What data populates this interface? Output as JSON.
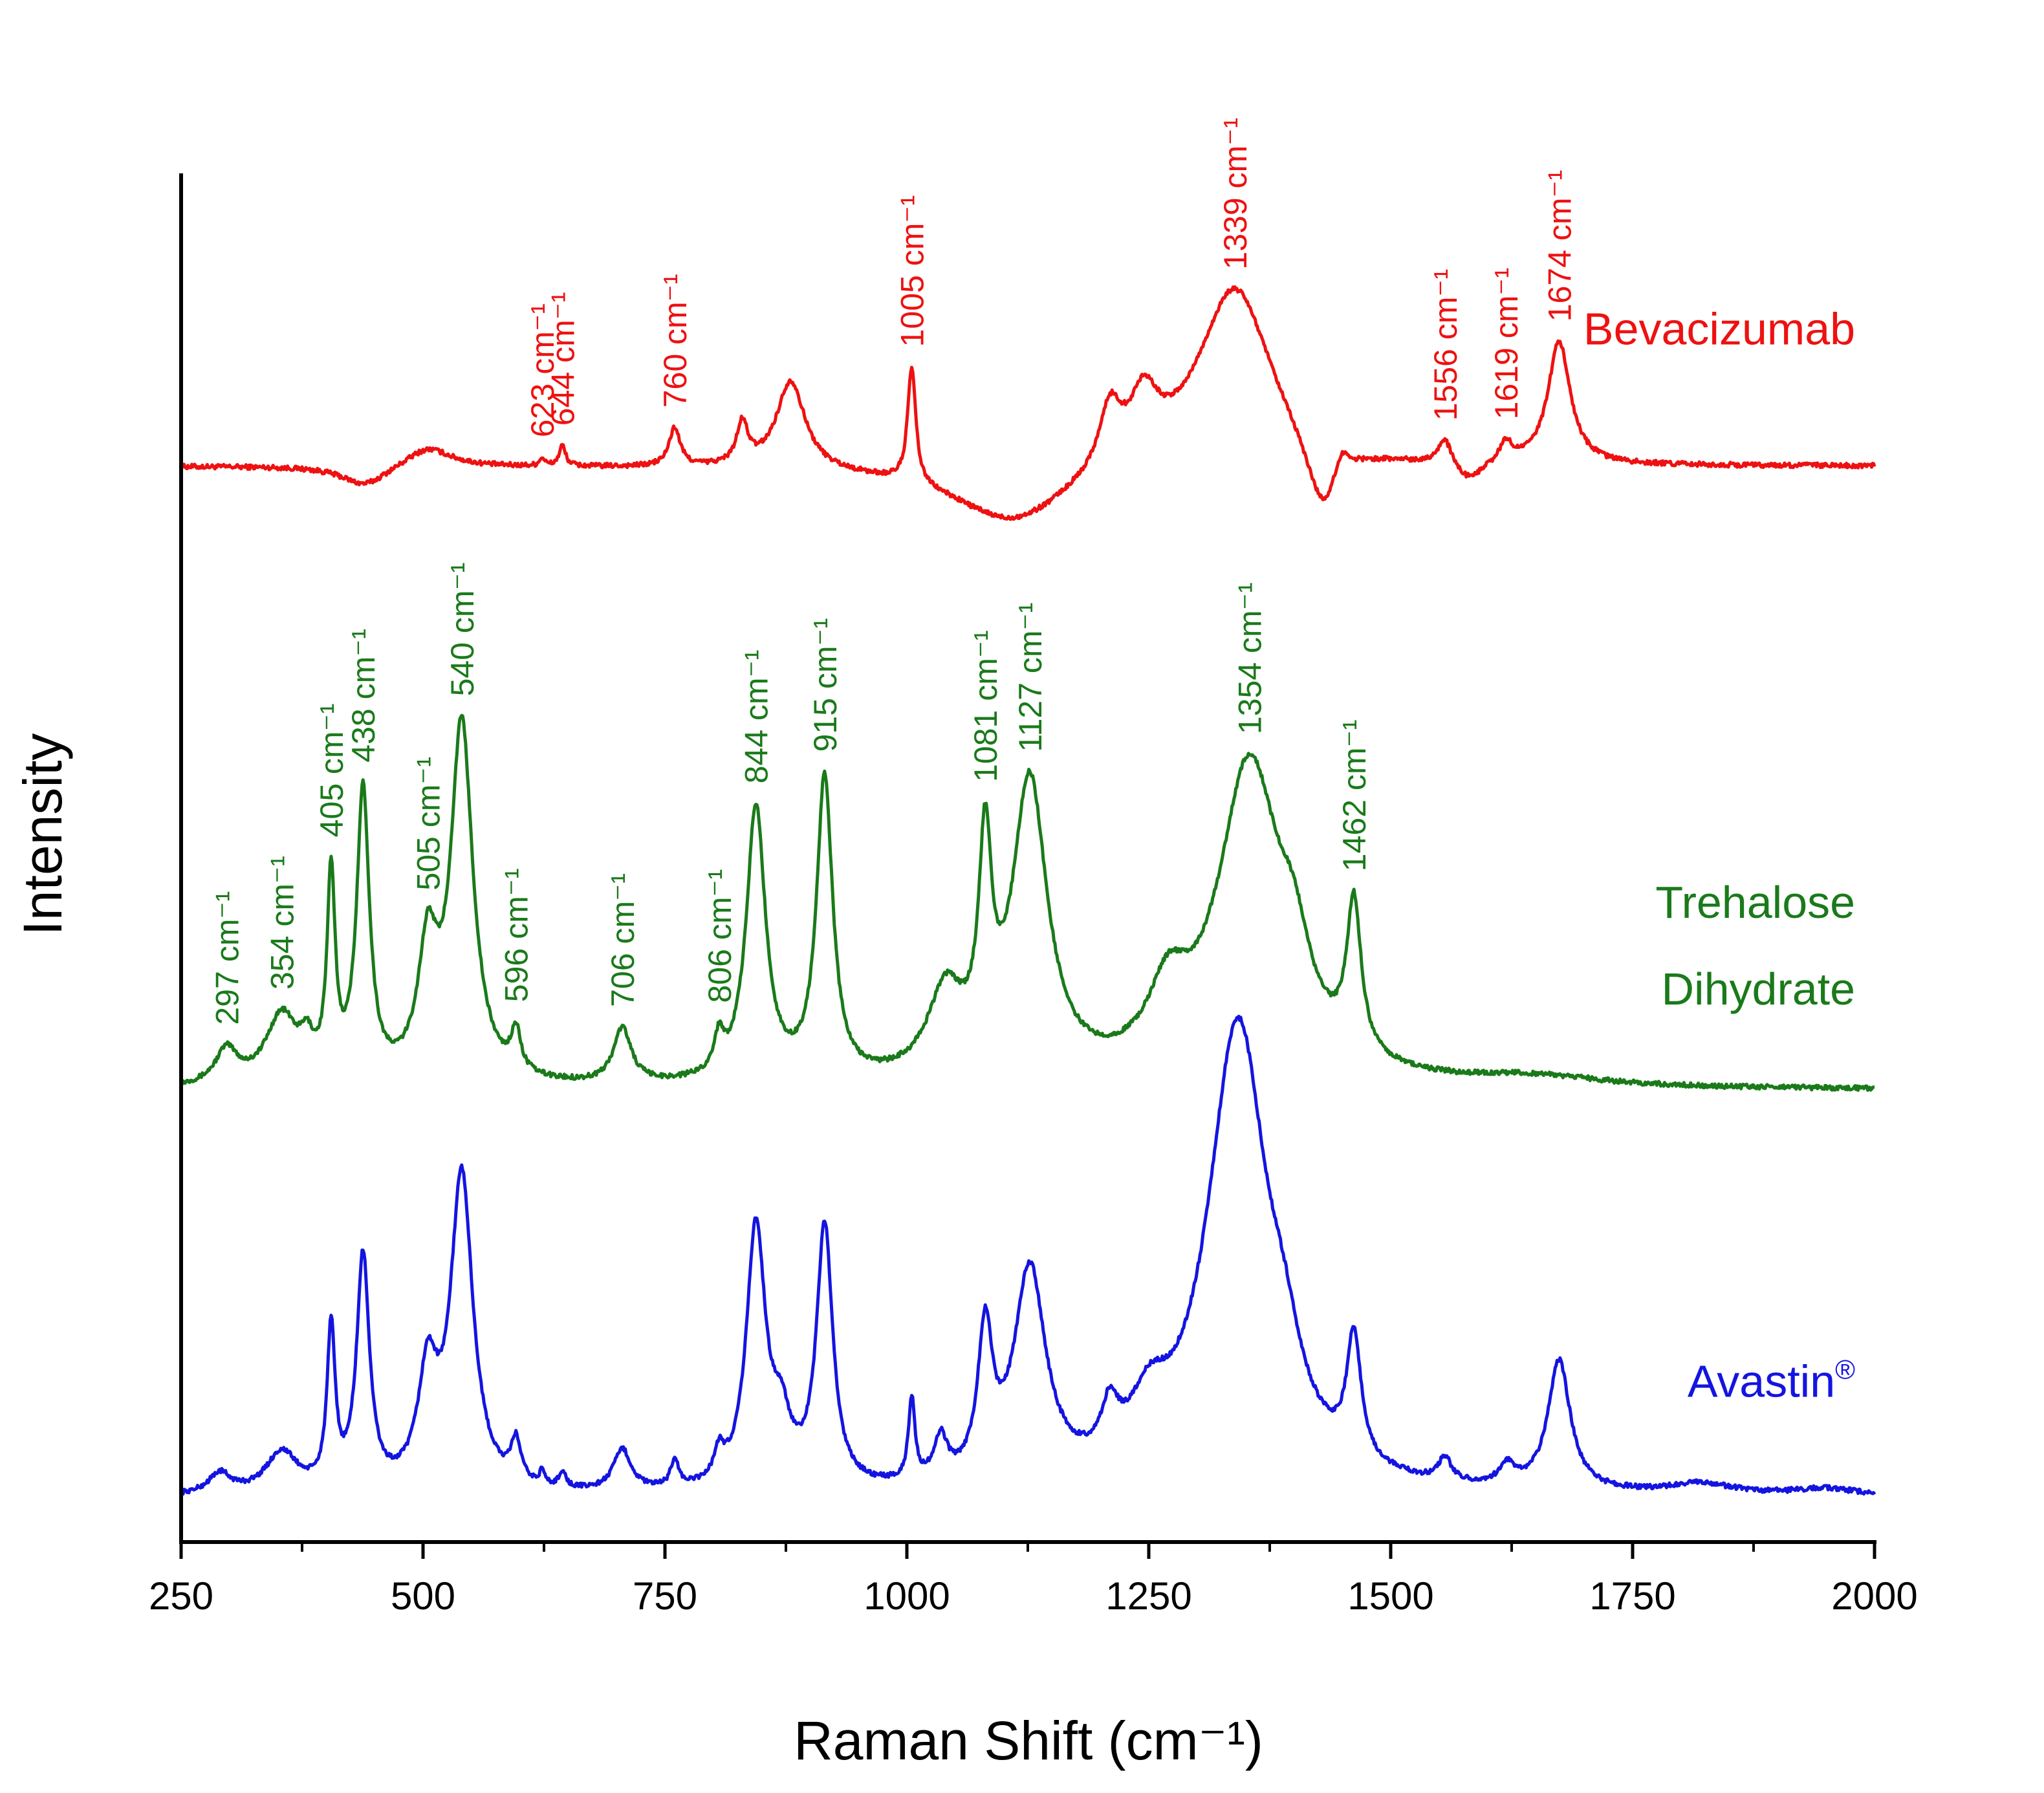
{
  "chart_data": {
    "type": "line",
    "title": "",
    "xlabel": "Raman Shift (cm⁻¹)",
    "ylabel": "Intensity",
    "xlim": [
      250,
      2000
    ],
    "ylim": [
      0,
      100
    ],
    "x_ticks": [
      250,
      500,
      750,
      1000,
      1250,
      1500,
      1750,
      2000
    ],
    "x_tick_labels": [
      "250",
      "500",
      "750",
      "1000",
      "1250",
      "1500",
      "1750",
      "2000"
    ],
    "grid": false,
    "series": [
      {
        "name": "Bevacizumab",
        "color": "#ee1111",
        "baseline": 78.6,
        "label_pos": [
          1980,
          87.5
        ],
        "peaks": [
          {
            "x": 623,
            "h": 0.6,
            "w": 3
          },
          {
            "x": 644,
            "h": 1.5,
            "w": 4
          },
          {
            "x": 760,
            "h": 2.8,
            "w": 7
          },
          {
            "x": 830,
            "h": 3.0,
            "w": 7
          },
          {
            "x": 880,
            "h": 6.5,
            "w": 18
          },
          {
            "x": 1005,
            "h": 8.5,
            "w": 5
          },
          {
            "x": 1210,
            "h": 4.5,
            "w": 14
          },
          {
            "x": 1245,
            "h": 4.5,
            "w": 18
          },
          {
            "x": 1339,
            "h": 13.5,
            "w": 48
          },
          {
            "x": 1449,
            "h": 2.0,
            "w": 10
          },
          {
            "x": 1556,
            "h": 2.0,
            "w": 9
          },
          {
            "x": 1619,
            "h": 1.5,
            "w": 9
          },
          {
            "x": 1674,
            "h": 9.0,
            "w": 14
          },
          {
            "x": 505,
            "h": 1.5,
            "w": 30
          },
          {
            "x": 1110,
            "h": -4.5,
            "w": 80
          },
          {
            "x": 1430,
            "h": -5.5,
            "w": 22
          },
          {
            "x": 1580,
            "h": -1.5,
            "w": 20
          },
          {
            "x": 440,
            "h": -1.5,
            "w": 30
          }
        ],
        "peak_labels": [
          {
            "x": 623,
            "text": "623 cm⁻¹"
          },
          {
            "x": 644,
            "text": "644 cm⁻¹"
          },
          {
            "x": 760,
            "text": "760 cm⁻¹"
          },
          {
            "x": 1005,
            "text": "1005 cm⁻¹"
          },
          {
            "x": 1339,
            "text": "1339 cm⁻¹"
          },
          {
            "x": 1556,
            "text": "1556 cm⁻¹"
          },
          {
            "x": 1619,
            "text": "1619 cm⁻¹"
          },
          {
            "x": 1674,
            "text": "1674 cm⁻¹"
          }
        ]
      },
      {
        "name": "Trehalose Dihydrate",
        "name_lines": [
          "Trehalose",
          "Dihydrate"
        ],
        "color": "#1a7a1a",
        "baseline": 33.0,
        "label_pos": [
          1980,
          45.6
        ],
        "peaks": [
          {
            "x": 297,
            "h": 2.5,
            "w": 14
          },
          {
            "x": 354,
            "h": 5.0,
            "w": 20
          },
          {
            "x": 380,
            "h": 2.0,
            "w": 8
          },
          {
            "x": 405,
            "h": 14.5,
            "w": 5
          },
          {
            "x": 438,
            "h": 21.0,
            "w": 8
          },
          {
            "x": 505,
            "h": 9.0,
            "w": 12
          },
          {
            "x": 540,
            "h": 26.0,
            "w": 14
          },
          {
            "x": 596,
            "h": 3.0,
            "w": 6
          },
          {
            "x": 706,
            "h": 4.0,
            "w": 11
          },
          {
            "x": 806,
            "h": 2.5,
            "w": 6
          },
          {
            "x": 844,
            "h": 20.0,
            "w": 12
          },
          {
            "x": 915,
            "h": 22.0,
            "w": 10
          },
          {
            "x": 1040,
            "h": 6.0,
            "w": 22
          },
          {
            "x": 1081,
            "h": 15.0,
            "w": 8
          },
          {
            "x": 1127,
            "h": 21.5,
            "w": 22
          },
          {
            "x": 1270,
            "h": 5.0,
            "w": 25
          },
          {
            "x": 1354,
            "h": 23.0,
            "w": 40
          },
          {
            "x": 1400,
            "h": 5.0,
            "w": 20
          },
          {
            "x": 1462,
            "h": 11.0,
            "w": 9
          },
          {
            "x": 1650,
            "h": 0.7,
            "w": 80
          }
        ],
        "peak_labels": [
          {
            "x": 297,
            "text": "297 cm⁻¹"
          },
          {
            "x": 354,
            "text": "354 cm⁻¹"
          },
          {
            "x": 405,
            "text": "405 cm⁻¹"
          },
          {
            "x": 438,
            "text": "438 cm⁻¹"
          },
          {
            "x": 505,
            "text": "505 cm⁻¹"
          },
          {
            "x": 540,
            "text": "540 cm⁻¹"
          },
          {
            "x": 596,
            "text": "596 cm⁻¹"
          },
          {
            "x": 706,
            "text": "706 cm⁻¹"
          },
          {
            "x": 806,
            "text": "806 cm⁻¹"
          },
          {
            "x": 844,
            "text": "844 cm⁻¹"
          },
          {
            "x": 915,
            "text": "915 cm⁻¹"
          },
          {
            "x": 1081,
            "text": "1081 cm⁻¹"
          },
          {
            "x": 1127,
            "text": "1127 cm⁻¹"
          },
          {
            "x": 1354,
            "text": "1354 cm⁻¹"
          },
          {
            "x": 1462,
            "text": "1462 cm⁻¹"
          }
        ]
      },
      {
        "name": "Avastin®",
        "name_base": "Avastin",
        "name_sup": "®",
        "color": "#1414e0",
        "baseline": 3.2,
        "label_pos": [
          1980,
          10.6
        ],
        "peaks": [
          {
            "x": 290,
            "h": 1.5,
            "w": 14
          },
          {
            "x": 354,
            "h": 3.0,
            "w": 20
          },
          {
            "x": 405,
            "h": 11.5,
            "w": 5
          },
          {
            "x": 438,
            "h": 17.0,
            "w": 8
          },
          {
            "x": 505,
            "h": 8.0,
            "w": 12
          },
          {
            "x": 540,
            "h": 23.0,
            "w": 14
          },
          {
            "x": 596,
            "h": 3.0,
            "w": 6
          },
          {
            "x": 623,
            "h": 1.0,
            "w": 3
          },
          {
            "x": 644,
            "h": 1.2,
            "w": 4
          },
          {
            "x": 706,
            "h": 3.0,
            "w": 11
          },
          {
            "x": 760,
            "h": 2.0,
            "w": 5
          },
          {
            "x": 806,
            "h": 2.0,
            "w": 6
          },
          {
            "x": 844,
            "h": 19.0,
            "w": 12
          },
          {
            "x": 870,
            "h": 4.0,
            "w": 12
          },
          {
            "x": 915,
            "h": 19.0,
            "w": 10
          },
          {
            "x": 1005,
            "h": 6.0,
            "w": 4
          },
          {
            "x": 1035,
            "h": 3.0,
            "w": 8
          },
          {
            "x": 1081,
            "h": 10.5,
            "w": 9
          },
          {
            "x": 1127,
            "h": 15.5,
            "w": 20
          },
          {
            "x": 1210,
            "h": 3.5,
            "w": 10
          },
          {
            "x": 1250,
            "h": 4.0,
            "w": 25
          },
          {
            "x": 1342,
            "h": 34.0,
            "w": 38
          },
          {
            "x": 1390,
            "h": 4.0,
            "w": 20
          },
          {
            "x": 1462,
            "h": 9.0,
            "w": 9
          },
          {
            "x": 1556,
            "h": 1.7,
            "w": 8
          },
          {
            "x": 1620,
            "h": 1.5,
            "w": 9
          },
          {
            "x": 1674,
            "h": 9.5,
            "w": 14
          },
          {
            "x": 1820,
            "h": 0.8,
            "w": 40
          },
          {
            "x": 1950,
            "h": 0.5,
            "w": 40
          }
        ],
        "peak_labels": []
      }
    ]
  }
}
